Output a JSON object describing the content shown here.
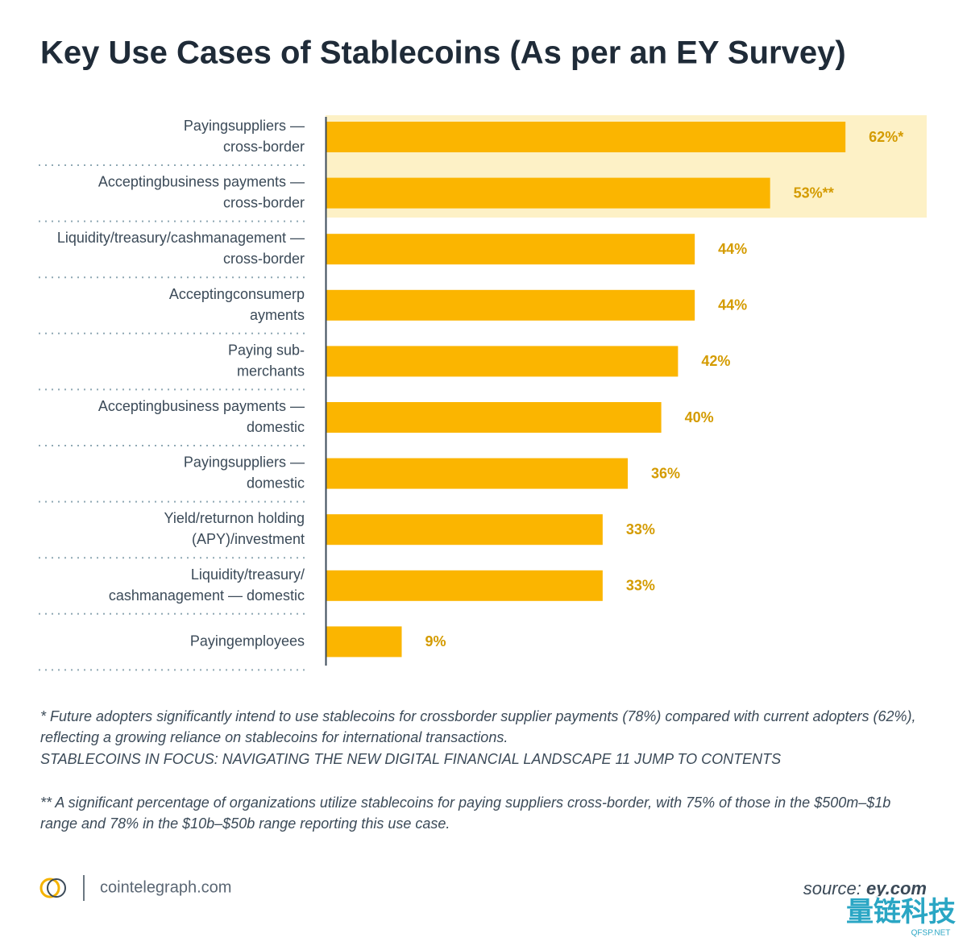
{
  "chart_data": {
    "type": "hbar",
    "title": "Key Use Cases of Stablecoins (As per an EY Survey)",
    "categories": [
      "Payingsuppliers —\ncross-border",
      "Acceptingbusiness payments —\ncross-border",
      "Liquidity/treasury/cashmanagement —\ncross-border",
      "Acceptingconsumerp\nayments",
      "Paying sub-\nmerchants",
      "Acceptingbusiness payments —\ndomestic",
      "Payingsuppliers —\ndomestic",
      "Yield/returnon holding\n(APY)/investment",
      "Liquidity/treasury/\ncashmanagement — domestic",
      "Payingemployees"
    ],
    "values": [
      62,
      53,
      44,
      44,
      42,
      40,
      36,
      33,
      33,
      9
    ],
    "value_labels": [
      "62%*",
      "53%**",
      "44%",
      "44%",
      "42%",
      "40%",
      "36%",
      "33%",
      "33%",
      "9%"
    ],
    "color": "#fbb500",
    "label_color": "#d49b00"
  },
  "footnotes": [
    "* Future adopters significantly intend to use stablecoins for crossborder supplier payments (78%) compared with current adopters (62%),",
    "reflecting a growing reliance on stablecoins for international transactions.",
    "STABLECOINS IN FOCUS: NAVIGATING THE NEW DIGITAL FINANCIAL LANDSCAPE 11 JUMP TO CONTENTS",
    "** A significant percentage of organizations utilize stablecoins for paying suppliers cross-border, with 75% of those in the $500m–$1b",
    "range and 78% in the $10b–$50b range reporting this use case."
  ],
  "footer": {
    "brand": "cointelegraph.com",
    "source_label": "source:",
    "source": "ey.com"
  },
  "watermark": {
    "name": "量链科技",
    "site": "QFSP.NET"
  }
}
